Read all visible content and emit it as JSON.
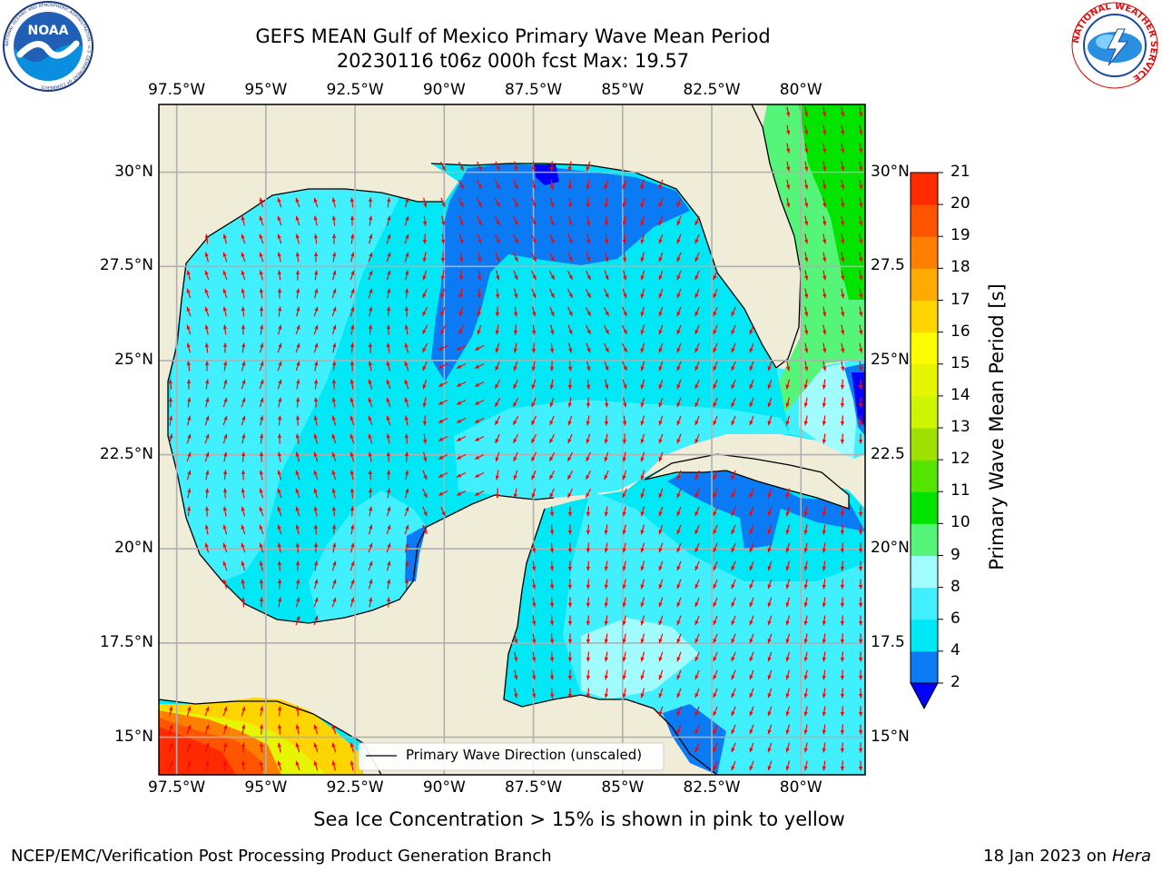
{
  "header": {
    "title_line1": "GEFS MEAN Gulf of Mexico Primary Wave Mean Period",
    "title_line2": "20230116 t06z 000h fcst   Max: 19.57"
  },
  "logos": {
    "left": {
      "icon": "noaa-logo",
      "text": "NOAA",
      "ring_text": "NATIONAL OCEANIC AND ATMOSPHERIC ADMINISTRATION · U.S. DEPARTMENT OF COMMERCE"
    },
    "right": {
      "icon": "nws-logo",
      "ring_text": "NATIONAL WEATHER SERVICE"
    }
  },
  "axes": {
    "lon_labels": [
      "97.5°W",
      "95°W",
      "92.5°W",
      "90°W",
      "87.5°W",
      "85°W",
      "82.5°W",
      "80°W"
    ],
    "lon_values": [
      -97.5,
      -95,
      -92.5,
      -90,
      -87.5,
      -85,
      -82.5,
      -80
    ],
    "lat_labels_left": [
      "30°N",
      "27.5°N",
      "25°N",
      "22.5°N",
      "20°N",
      "17.5°N",
      "15°N"
    ],
    "lat_labels_right": [
      "30°N",
      "27.5",
      "25°N",
      "22.5",
      "20°N",
      "17.5",
      "15°N"
    ],
    "lat_values": [
      30,
      27.5,
      25,
      22.5,
      20,
      17.5,
      15
    ],
    "lon_range": [
      -98,
      -78.2
    ],
    "lat_range": [
      14,
      31.8
    ]
  },
  "legend": {
    "line_label": "Primary Wave Direction (unscaled)"
  },
  "colorbar": {
    "label": "Primary Wave Mean Period [s]",
    "tick_labels": [
      "2",
      "4",
      "6",
      "8",
      "9",
      "10",
      "11",
      "12",
      "13",
      "14",
      "15",
      "16",
      "17",
      "18",
      "19",
      "20",
      "21"
    ],
    "levels": [
      2,
      4,
      6,
      8,
      9,
      10,
      11,
      12,
      13,
      14,
      15,
      16,
      17,
      18,
      19,
      20,
      21
    ],
    "colors": [
      "#0a7af5",
      "#00e8f5",
      "#40f0ff",
      "#a0fcff",
      "#55f57a",
      "#00e400",
      "#55e500",
      "#a0e000",
      "#cdf500",
      "#e6f500",
      "#fcfc00",
      "#ffd500",
      "#ffaa00",
      "#ff8000",
      "#ff5500",
      "#ff2a00"
    ],
    "extend_min_color": "#0000ff"
  },
  "map_colors": {
    "land": "#efecd8",
    "coast": "#000000",
    "grid": "#b0b0b0",
    "arrow": "#ff0000"
  },
  "footer": {
    "note": "Sea Ice Concentration > 15% is shown in pink to yellow",
    "credit": "NCEP/EMC/Verification Post Processing Product Generation Branch",
    "date_text": "18 Jan 2023 on ",
    "machine": "Hera"
  }
}
